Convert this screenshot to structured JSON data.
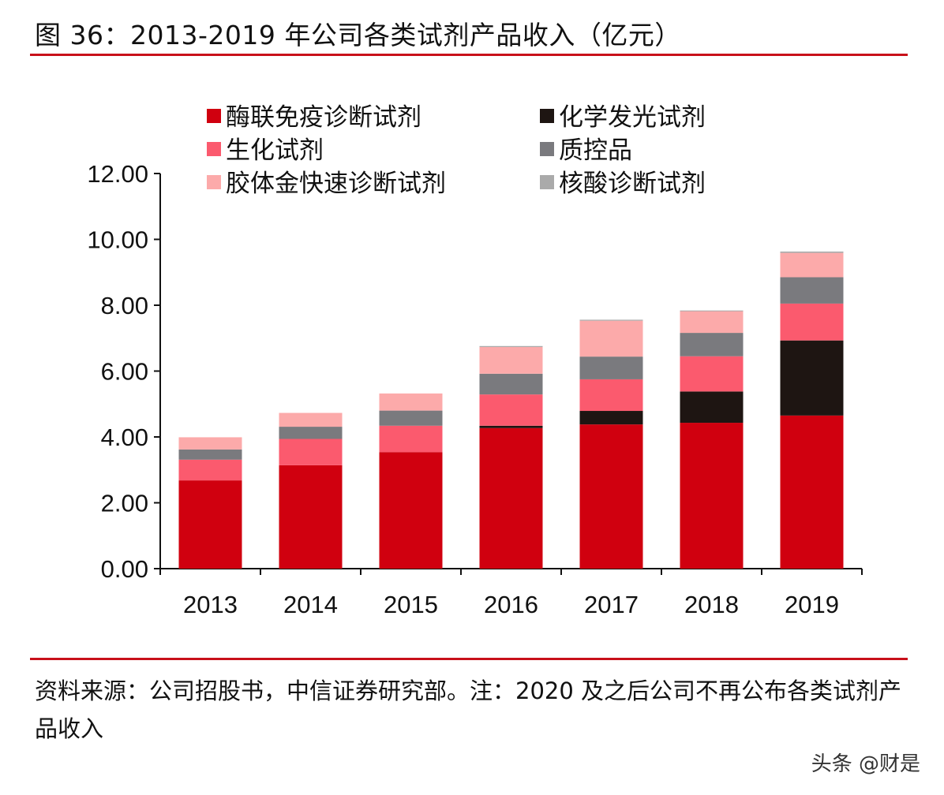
{
  "title": "图 36：2013-2019 年公司各类试剂产品收入（亿元）",
  "footer": "资料来源：公司招股书，中信证券研究部。注：2020 及之后公司不再公布各类试剂产品收入",
  "watermark": "头条 @财是",
  "chart_data": {
    "type": "bar",
    "stacked": true,
    "title": "",
    "xlabel": "",
    "ylabel": "",
    "ylim": [
      0,
      12
    ],
    "yticks": [
      "0.00",
      "2.00",
      "4.00",
      "6.00",
      "8.00",
      "10.00",
      "12.00"
    ],
    "grid": false,
    "legend_position": "top",
    "categories": [
      "2013",
      "2014",
      "2015",
      "2016",
      "2017",
      "2018",
      "2019"
    ],
    "series": [
      {
        "name": "酶联免疫诊断试剂",
        "color": "#d0000f",
        "values": [
          2.68,
          3.14,
          3.54,
          4.27,
          4.38,
          4.43,
          4.65
        ]
      },
      {
        "name": "化学发光试剂",
        "color": "#1e1512",
        "values": [
          0,
          0,
          0,
          0.07,
          0.41,
          0.95,
          2.28
        ]
      },
      {
        "name": "生化试剂",
        "color": "#fb5a6e",
        "values": [
          0.63,
          0.8,
          0.8,
          0.95,
          0.96,
          1.07,
          1.12
        ]
      },
      {
        "name": "质控品",
        "color": "#7a7a7e",
        "values": [
          0.31,
          0.37,
          0.46,
          0.63,
          0.69,
          0.71,
          0.8
        ]
      },
      {
        "name": "胶体金快速诊断试剂",
        "color": "#fcaaaa",
        "values": [
          0.37,
          0.42,
          0.52,
          0.81,
          1.09,
          0.66,
          0.74
        ]
      },
      {
        "name": "核酸诊断试剂",
        "color": "#aaaaaa",
        "values": [
          0,
          0,
          0,
          0.03,
          0.03,
          0.02,
          0.04
        ]
      }
    ],
    "legend_order": [
      0,
      1,
      2,
      3,
      4,
      5
    ]
  }
}
